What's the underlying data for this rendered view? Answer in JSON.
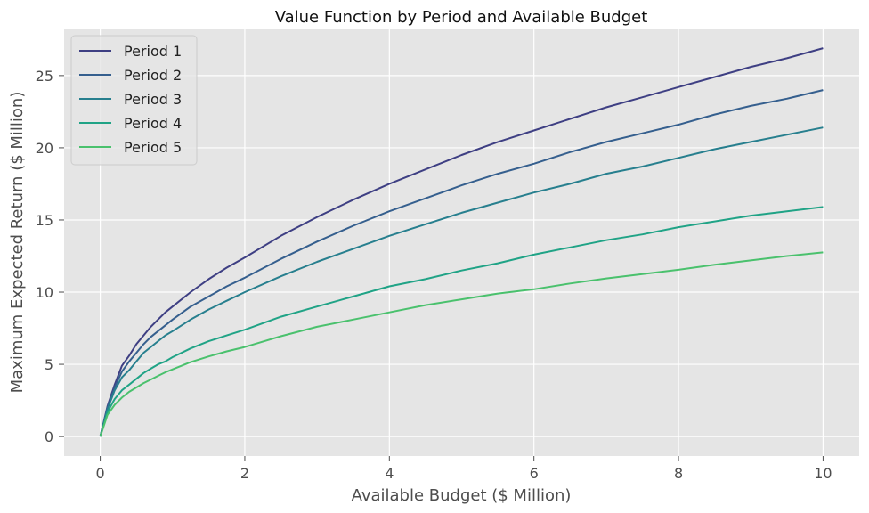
{
  "chart_data": {
    "type": "line",
    "title": "Value Function by Period and Available Budget",
    "xlabel": "Available Budget ($ Million)",
    "ylabel": "Maximum Expected Return ($ Million)",
    "xlim": [
      -0.5,
      10.5
    ],
    "ylim": [
      -1.35,
      28.2
    ],
    "xticks": [
      0,
      2,
      4,
      6,
      8,
      10
    ],
    "yticks": [
      0,
      5,
      10,
      15,
      20,
      25
    ],
    "xtick_labels": [
      "0",
      "2",
      "4",
      "6",
      "8",
      "10"
    ],
    "ytick_labels": [
      "0",
      "5",
      "10",
      "15",
      "20",
      "25"
    ],
    "grid": true,
    "legend_position": "top-left",
    "x": [
      0,
      0.1,
      0.2,
      0.3,
      0.4,
      0.5,
      0.6,
      0.7,
      0.8,
      0.9,
      1.0,
      1.25,
      1.5,
      1.75,
      2.0,
      2.5,
      3.0,
      3.5,
      4.0,
      4.5,
      5.0,
      5.5,
      6.0,
      6.5,
      7.0,
      7.5,
      8.0,
      8.5,
      9.0,
      9.5,
      10.0
    ],
    "series": [
      {
        "name": "Period 1",
        "color": "#3e3f83",
        "values": [
          0,
          2.1,
          3.6,
          4.9,
          5.6,
          6.4,
          7.0,
          7.6,
          8.1,
          8.6,
          9.0,
          10.0,
          10.9,
          11.7,
          12.4,
          13.9,
          15.2,
          16.4,
          17.5,
          18.5,
          19.5,
          20.4,
          21.2,
          22.0,
          22.8,
          23.5,
          24.2,
          24.9,
          25.6,
          26.2,
          26.9
        ]
      },
      {
        "name": "Period 2",
        "color": "#355f8e",
        "values": [
          0,
          2.0,
          3.4,
          4.5,
          5.2,
          5.8,
          6.4,
          6.9,
          7.3,
          7.7,
          8.1,
          9.0,
          9.7,
          10.4,
          11.0,
          12.3,
          13.5,
          14.6,
          15.6,
          16.5,
          17.4,
          18.2,
          18.9,
          19.7,
          20.4,
          21.0,
          21.6,
          22.3,
          22.9,
          23.4,
          24.0
        ]
      },
      {
        "name": "Period 3",
        "color": "#277f8e",
        "values": [
          0,
          1.9,
          3.2,
          4.1,
          4.6,
          5.2,
          5.8,
          6.2,
          6.6,
          7.0,
          7.3,
          8.1,
          8.8,
          9.4,
          10.0,
          11.1,
          12.1,
          13.0,
          13.9,
          14.7,
          15.5,
          16.2,
          16.9,
          17.5,
          18.2,
          18.7,
          19.3,
          19.9,
          20.4,
          20.9,
          21.4
        ]
      },
      {
        "name": "Period 4",
        "color": "#20a386",
        "values": [
          0,
          1.7,
          2.6,
          3.2,
          3.6,
          4.0,
          4.4,
          4.7,
          5.0,
          5.2,
          5.5,
          6.1,
          6.6,
          7.0,
          7.4,
          8.3,
          9.0,
          9.7,
          10.4,
          10.9,
          11.5,
          12.0,
          12.6,
          13.1,
          13.6,
          14.0,
          14.5,
          14.9,
          15.3,
          15.6,
          15.9
        ]
      },
      {
        "name": "Period 5",
        "color": "#4ac16d",
        "values": [
          0,
          1.5,
          2.2,
          2.7,
          3.1,
          3.4,
          3.7,
          3.95,
          4.2,
          4.45,
          4.65,
          5.15,
          5.55,
          5.9,
          6.2,
          6.95,
          7.6,
          8.1,
          8.6,
          9.1,
          9.5,
          9.9,
          10.2,
          10.6,
          10.95,
          11.25,
          11.55,
          11.9,
          12.2,
          12.5,
          12.75
        ]
      }
    ]
  }
}
